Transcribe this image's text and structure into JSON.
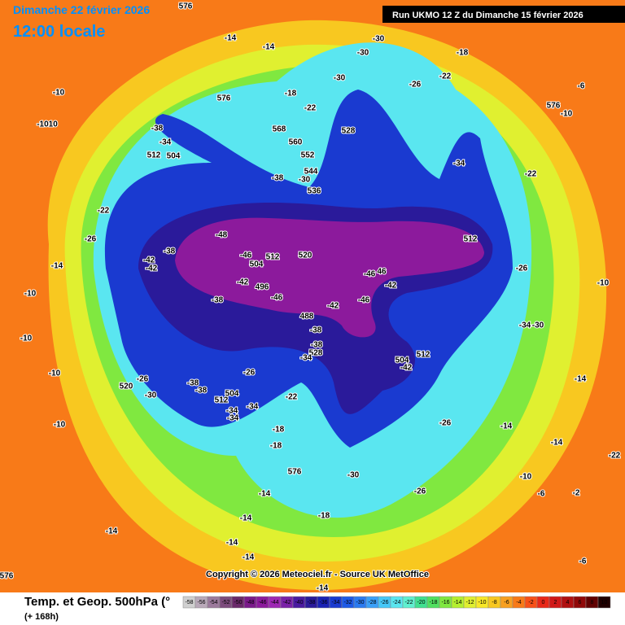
{
  "header": {
    "title": "Dimanche 22 février 2026",
    "time": "12:00 locale",
    "run": "Run UKMO 12 Z du Dimanche 15 février 2026"
  },
  "copyright": "Copyright © 2026 Meteociel.fr - Source UK MetOffice",
  "footer": {
    "product": "Temp. et Geop. 500hPa (°",
    "lead": "(+ 168h)"
  },
  "map_labels": [
    "576",
    "-14",
    "-14",
    "-10",
    "-1010",
    "576",
    "-18",
    "-22",
    "568",
    "560",
    "552",
    "544",
    "-30",
    "536",
    "-38",
    "-38",
    "-34",
    "512",
    "504",
    "528",
    "-30",
    "-30",
    "-30",
    "-26",
    "-22",
    "-18",
    "-6",
    "-10",
    "576",
    "-34",
    "-22",
    "-22",
    "-26",
    "-48",
    "-46",
    "504",
    "512",
    "520",
    "-42",
    "-42",
    "-38",
    "-42",
    "496",
    "-38",
    "-46",
    "488",
    "-42",
    "-46",
    "-42",
    "-46",
    "46",
    "512",
    "-26",
    "-10",
    "-34",
    "-30",
    "512",
    "504",
    "-42",
    "-38",
    "-38",
    "528",
    "-34",
    "-14",
    "-26",
    "-14",
    "-14",
    "-10",
    "-6",
    "-2",
    "-22",
    "-6",
    "-26",
    "-30",
    "576",
    "-14",
    "-18",
    "-18",
    "-18",
    "-14",
    "-14",
    "-14",
    "-14",
    "-10",
    "-10",
    "-10",
    "-14",
    "-10",
    "-26",
    "520",
    "-30",
    "-38",
    "-38",
    "512",
    "504",
    "-34",
    "-34",
    "-34",
    "-26",
    "-22",
    "576",
    "-14"
  ],
  "colorbar": {
    "values": [
      -58,
      -56,
      -54,
      -52,
      -50,
      -48,
      -46,
      -44,
      -42,
      -40,
      -38,
      -36,
      -34,
      -32,
      -30,
      -28,
      -26,
      -24,
      -22,
      -20,
      -18,
      -16,
      -14,
      -12,
      -10,
      -8,
      -6,
      -4,
      -2,
      0,
      2,
      4,
      6,
      8,
      10
    ],
    "colors": [
      "#d0d0d0",
      "#b9a9b9",
      "#9c7a9c",
      "#7d4c7d",
      "#6a2a6a",
      "#7a1a8a",
      "#8c1a9c",
      "#9e28b4",
      "#7a22a8",
      "#4a1aa0",
      "#2a1a9a",
      "#1a22b4",
      "#1a3ad0",
      "#1e5ae6",
      "#2a7af0",
      "#3aa0f8",
      "#46c8f8",
      "#5ae6f0",
      "#60f0d0",
      "#40e090",
      "#50e060",
      "#80e840",
      "#b4f030",
      "#e0f030",
      "#f8e828",
      "#f8c820",
      "#f8a020",
      "#f87a18",
      "#f85018",
      "#e82818",
      "#d01818",
      "#b01010",
      "#900808",
      "#600000",
      "#200000"
    ]
  }
}
